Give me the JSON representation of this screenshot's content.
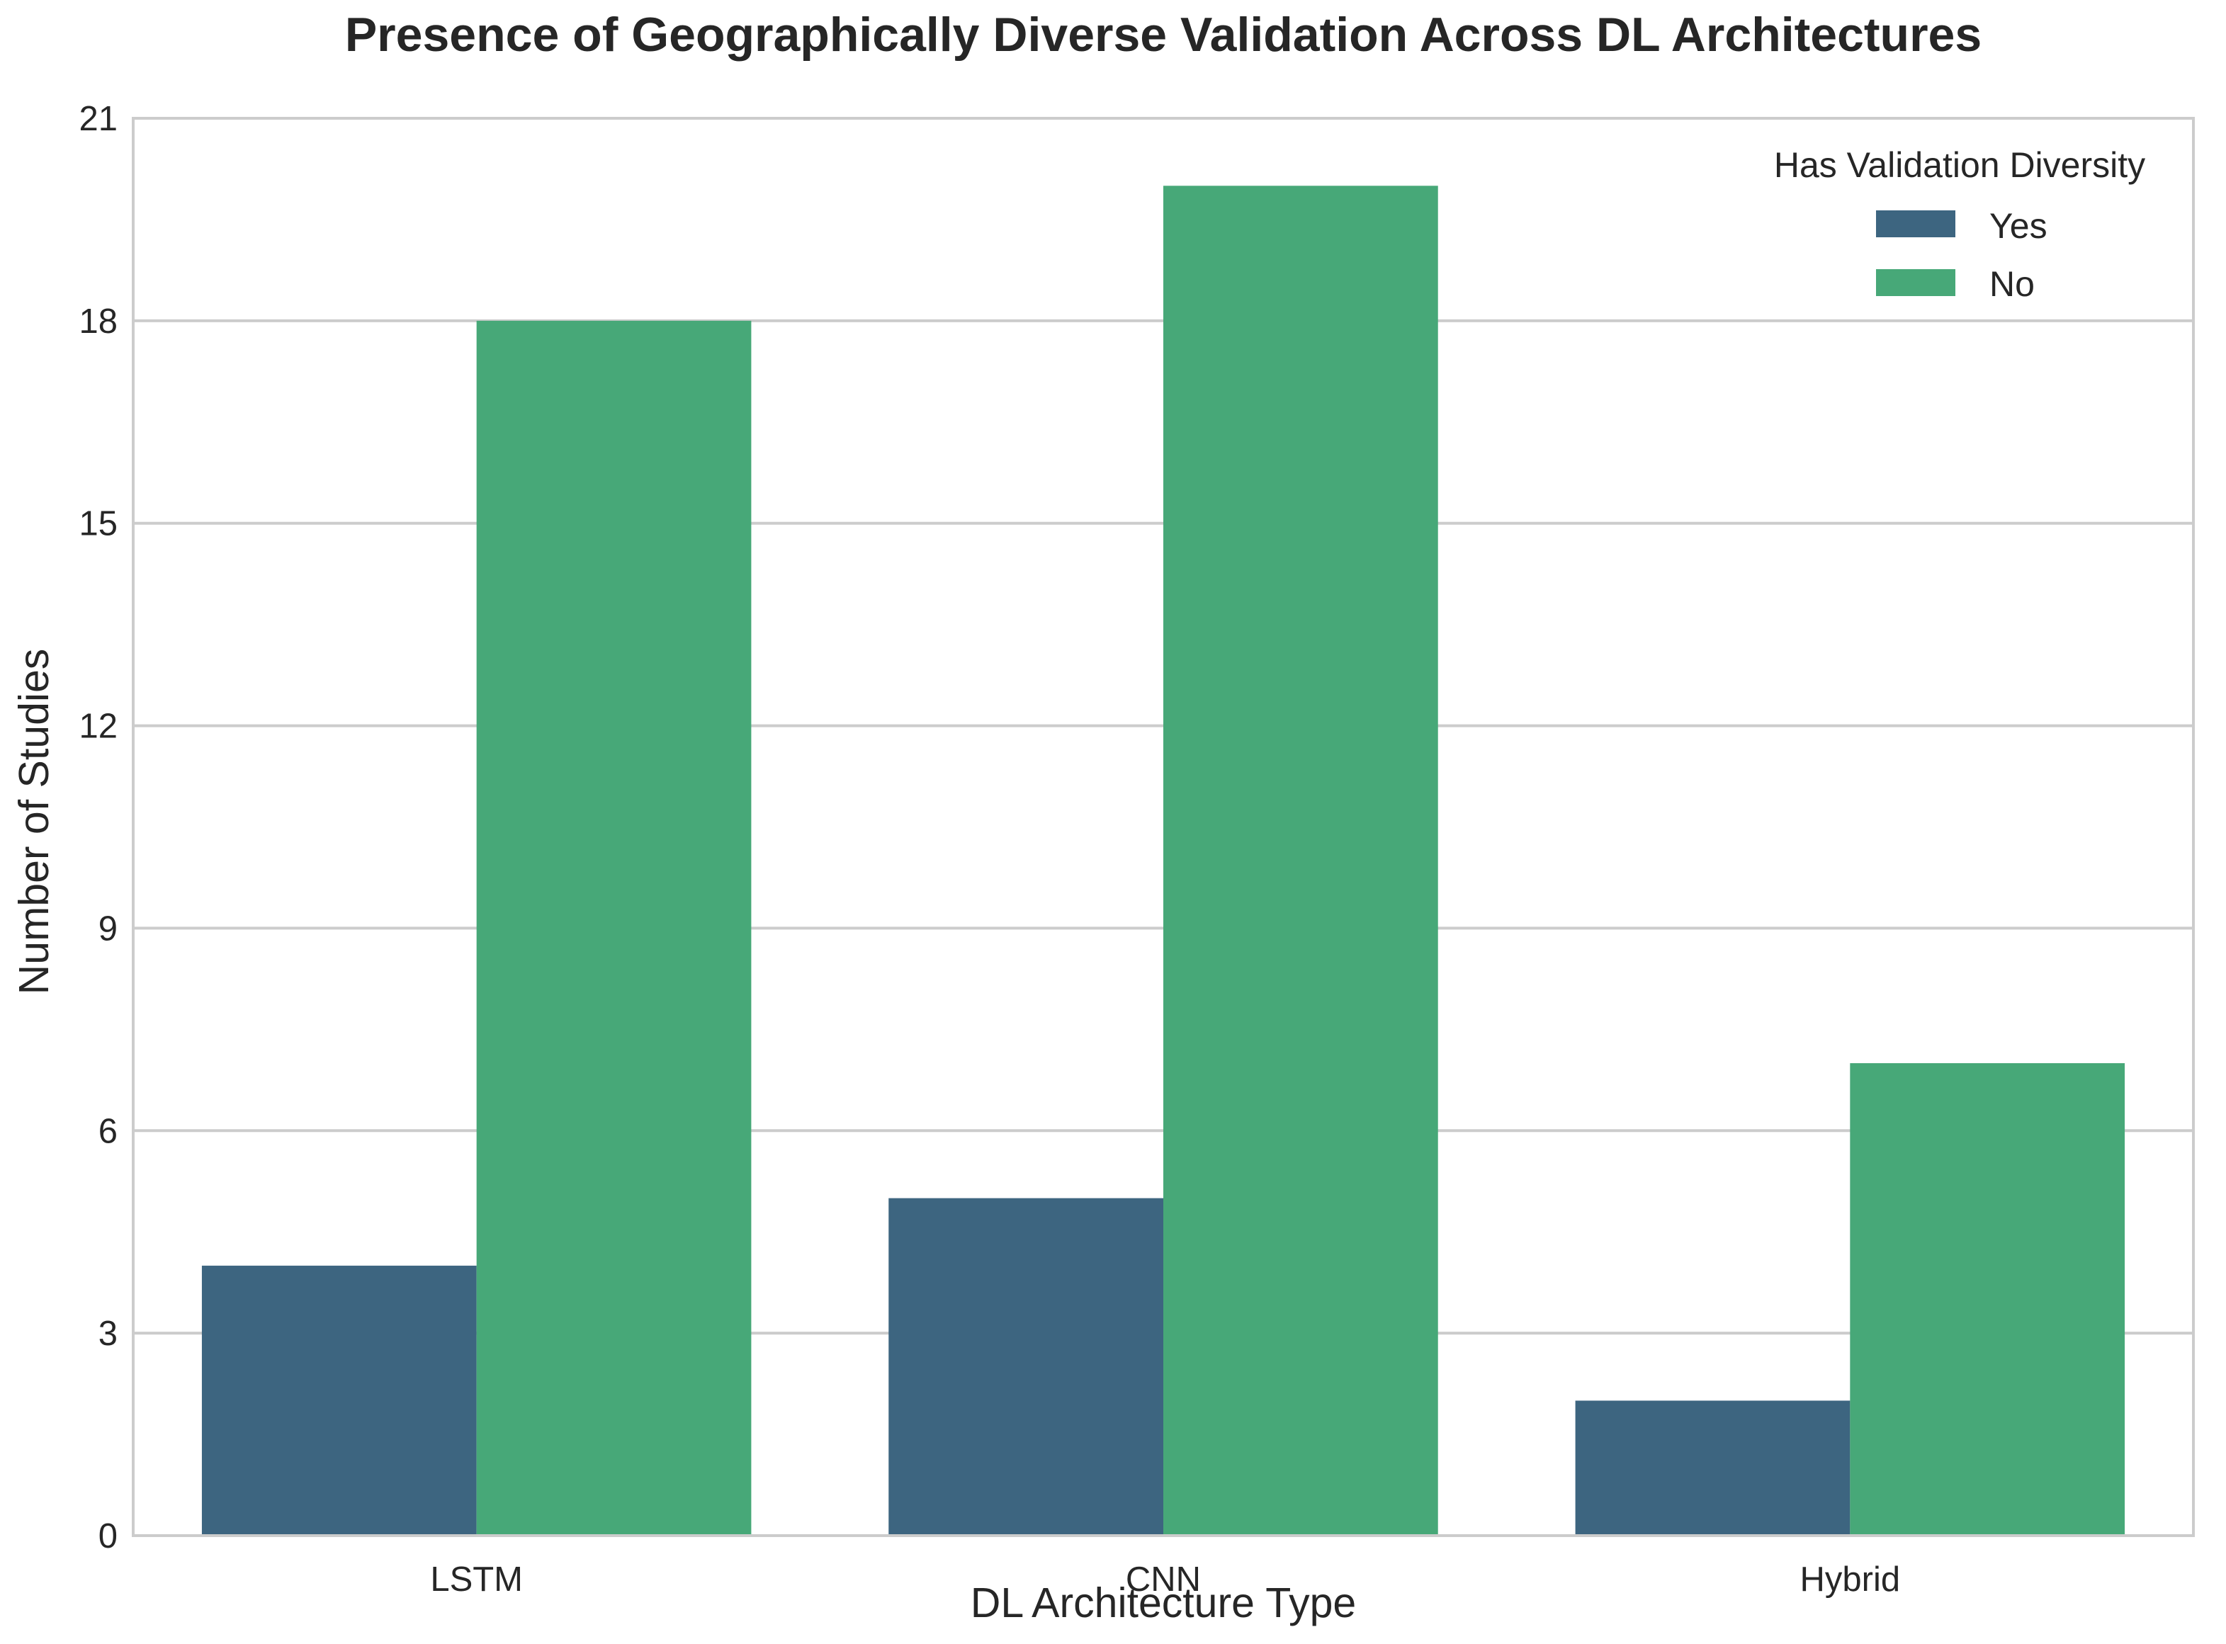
{
  "chart_data": {
    "type": "bar",
    "title": "Presence of Geographically Diverse Validation Across DL Architectures",
    "xlabel": "DL Architecture Type",
    "ylabel": "Number of Studies",
    "categories": [
      "LSTM",
      "CNN",
      "Hybrid"
    ],
    "series": [
      {
        "name": "Yes",
        "values": [
          4,
          5,
          2
        ],
        "color": "#3d6580"
      },
      {
        "name": "No",
        "values": [
          18,
          20,
          7
        ],
        "color": "#47a878"
      }
    ],
    "ylim": [
      0,
      21
    ],
    "yticks": [
      0,
      3,
      6,
      9,
      12,
      15,
      18,
      21
    ],
    "grid": true,
    "legend": {
      "title": "Has Validation Diversity",
      "placement": "top-right"
    },
    "colors": {
      "grid": "#cccccc",
      "frame": "#cccccc",
      "text": "#262626",
      "background": "#ffffff"
    }
  }
}
